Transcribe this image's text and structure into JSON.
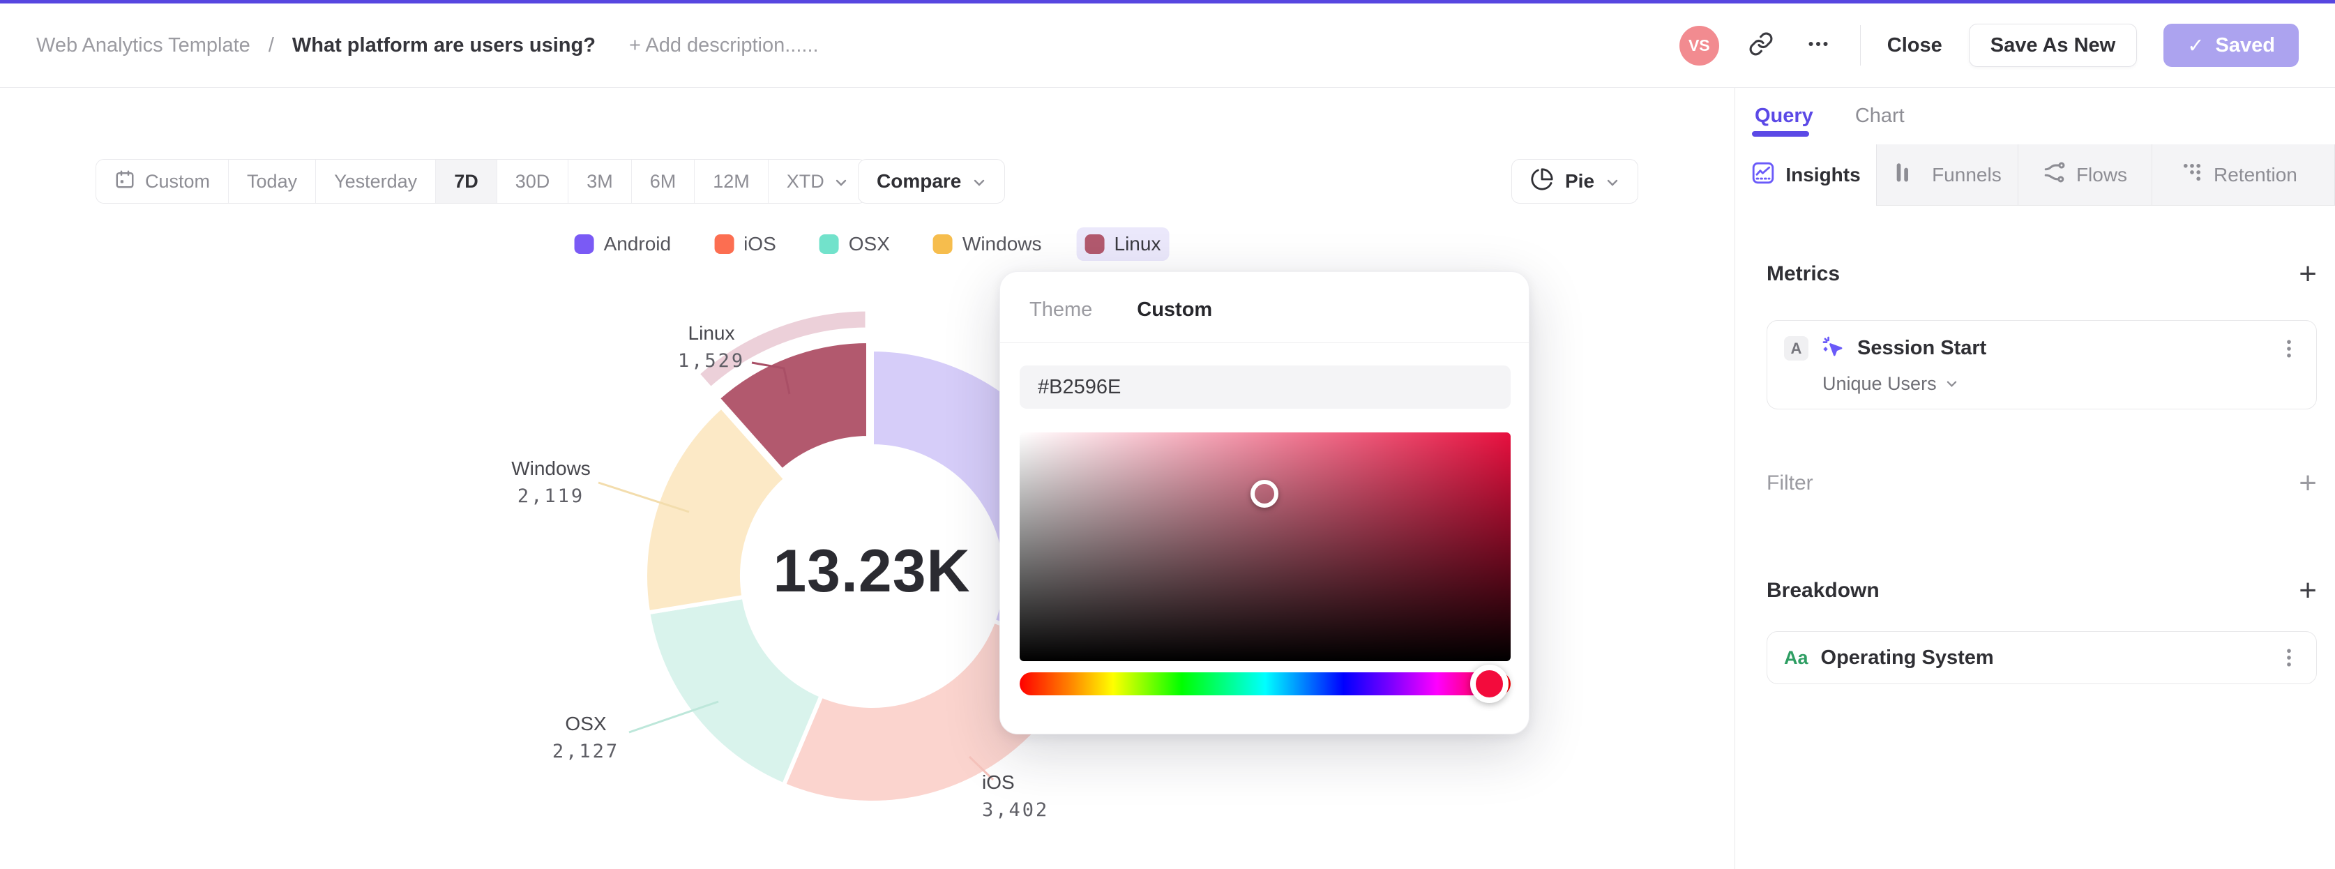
{
  "header": {
    "breadcrumb_root": "Web Analytics Template",
    "breadcrumb_separator": "/",
    "title": "What platform are users using?",
    "add_description": "+ Add description......",
    "avatar_initials": "VS",
    "close_label": "Close",
    "save_as_new_label": "Save As New",
    "saved_label": "Saved",
    "saved_check": "✓"
  },
  "toolbar": {
    "ranges": [
      "Custom",
      "Today",
      "Yesterday",
      "7D",
      "30D",
      "3M",
      "6M",
      "12M",
      "XTD"
    ],
    "selected_range": "7D",
    "compare_label": "Compare",
    "chart_type_label": "Pie"
  },
  "legend": {
    "items": [
      {
        "label": "Android",
        "color": "#7a5af5",
        "selected": false
      },
      {
        "label": "iOS",
        "color": "#fc6e51",
        "selected": false
      },
      {
        "label": "OSX",
        "color": "#72e2cb",
        "selected": false
      },
      {
        "label": "Windows",
        "color": "#f6bd4d",
        "selected": false
      },
      {
        "label": "Linux",
        "color": "#b2596e",
        "selected": true
      }
    ]
  },
  "chart_data": {
    "type": "pie",
    "title": "",
    "categories": [
      "Android",
      "iOS",
      "OSX",
      "Windows",
      "Linux"
    ],
    "values": [
      4053,
      3402,
      2127,
      2119,
      1529
    ],
    "center_total": "13.23K",
    "labels": {
      "linux": {
        "name": "Linux",
        "value": "1,529"
      },
      "windows": {
        "name": "Windows",
        "value": "2,119"
      },
      "osx": {
        "name": "OSX",
        "value": "2,127"
      },
      "ios": {
        "name": "iOS",
        "value": "3,402"
      }
    },
    "slice_colors": [
      "#d6cdf9",
      "#fbd4ce",
      "#d9f3ec",
      "#fce9c6",
      "#b2596e"
    ],
    "highlight_index": 4,
    "highlight_band_color": "#ecd0d9",
    "leader_colors": {
      "linux": "#a94f66",
      "windows": "#f3ddad",
      "osx": "#bde7da",
      "ios": "#f6c3bc"
    },
    "legend_position": "top",
    "grid": false
  },
  "color_picker": {
    "tabs": [
      {
        "label": "Theme",
        "active": false
      },
      {
        "label": "Custom",
        "active": true
      }
    ],
    "hex_value": "#B2596E",
    "base_hue": "#e8103f",
    "handle_color": "#f30b3c"
  },
  "panel": {
    "tabs": [
      {
        "label": "Query",
        "active": true
      },
      {
        "label": "Chart",
        "active": false
      }
    ],
    "views": [
      {
        "label": "Insights",
        "active": true
      },
      {
        "label": "Funnels",
        "active": false
      },
      {
        "label": "Flows",
        "active": false
      },
      {
        "label": "Retention",
        "active": false
      }
    ],
    "metrics": {
      "heading": "Metrics",
      "add_label": "+",
      "card": {
        "badge": "A",
        "name": "Session Start",
        "subvalue": "Unique Users"
      }
    },
    "filter": {
      "heading": "Filter",
      "add_label": "+"
    },
    "breakdown": {
      "heading": "Breakdown",
      "add_label": "+",
      "card": {
        "badge": "Aa",
        "name": "Operating System"
      }
    }
  },
  "colors": {
    "accent": "#5b49e6",
    "top_bar": "#5746e0",
    "saved_button_bg": "#aca3ef",
    "avatar_bg": "#f28b90",
    "selected_legend_bg": "#ebe8fb"
  },
  "icons": {
    "link": "chain-link",
    "more": "horizontal-ellipsis",
    "calendar": "calendar",
    "chevron": "chevron-down",
    "pie": "pie-chart",
    "check": "checkmark",
    "kebab": "vertical-dots",
    "metric": "sparkle-cursor",
    "insights": "line-chart-square",
    "funnels": "bars",
    "flows": "waves",
    "retention": "dot-grid"
  }
}
